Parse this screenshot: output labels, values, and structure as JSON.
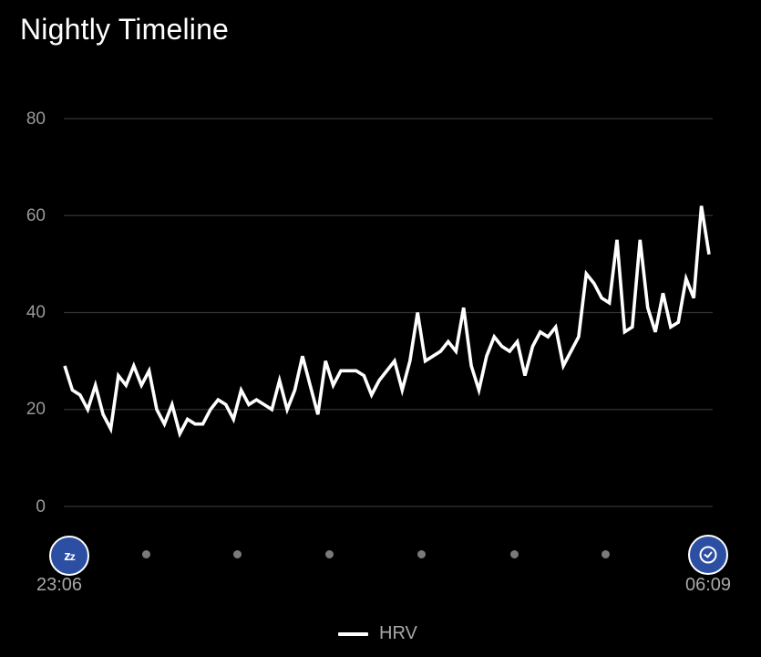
{
  "header": {
    "title": "Nightly Timeline"
  },
  "axis": {
    "y_ticks": [
      "80",
      "60",
      "40",
      "20",
      "0"
    ]
  },
  "timeline": {
    "start_time": "23:06",
    "end_time": "06:09",
    "start_icon": "sleep-zz-icon",
    "end_icon": "alarm-clock-icon",
    "intermediate_dots": 6
  },
  "legend": {
    "label": "HRV",
    "color": "#ffffff"
  },
  "colors": {
    "background": "#000000",
    "line": "#ffffff",
    "marker": "#2c4fa3",
    "grid": "#333333",
    "label": "#9a9a9a"
  },
  "chart_data": {
    "type": "line",
    "title": "Nightly Timeline",
    "xlabel": "",
    "ylabel": "",
    "ylim": [
      0,
      80
    ],
    "yticks": [
      0,
      20,
      40,
      60,
      80
    ],
    "grid": true,
    "legend_position": "bottom",
    "x_range": [
      "23:06",
      "06:09"
    ],
    "series": [
      {
        "name": "HRV",
        "values": [
          29,
          24,
          23,
          20,
          25,
          19,
          16,
          27,
          25,
          29,
          25,
          28,
          20,
          17,
          21,
          15,
          18,
          17,
          17,
          20,
          22,
          21,
          18,
          24,
          21,
          22,
          21,
          20,
          26,
          20,
          24,
          31,
          25,
          19,
          30,
          25,
          28,
          28,
          28,
          27,
          23,
          26,
          28,
          30,
          24,
          30,
          40,
          30,
          31,
          32,
          34,
          32,
          41,
          29,
          24,
          31,
          35,
          33,
          32,
          34,
          27,
          33,
          36,
          35,
          37,
          29,
          32,
          35,
          48,
          46,
          43,
          42,
          55,
          36,
          37,
          55,
          41,
          36,
          44,
          37,
          38,
          47,
          43,
          62,
          52
        ]
      }
    ]
  }
}
